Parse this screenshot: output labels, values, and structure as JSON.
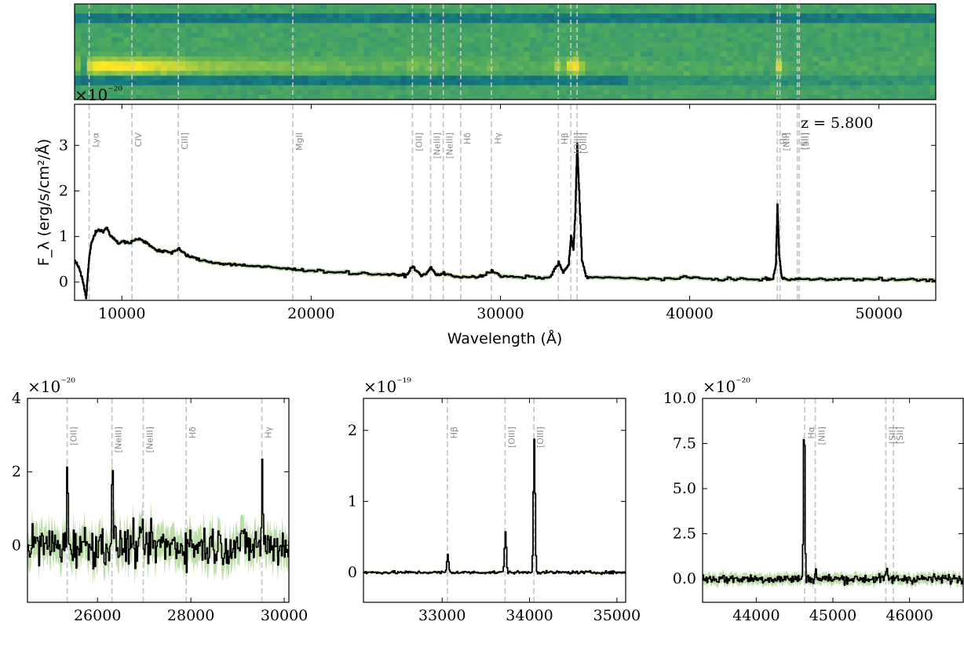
{
  "chart_data": [
    {
      "panel": "2d-spectrum",
      "type": "heatmap",
      "colormap": "viridis-like (green/yellow)",
      "xlim": [
        7500,
        53000
      ],
      "trace_features": [
        {
          "wavelength": 9000,
          "relative_brightness": 1.0
        },
        {
          "wavelength": 33700,
          "relative_brightness": 0.8
        },
        {
          "wavelength": 34070,
          "relative_brightness": 1.0
        },
        {
          "wavelength": 44620,
          "relative_brightness": 1.0
        }
      ]
    },
    {
      "panel": "main-1d",
      "type": "line",
      "title": "",
      "xlabel": "Wavelength (Å)",
      "ylabel": "F_λ (erg/s/cm²/Å)",
      "y_offset_text": "×10⁻²⁰",
      "annotation": "z = 5.800",
      "xlim": [
        7500,
        53000
      ],
      "ylim": [
        -0.4,
        3.9
      ],
      "xticks": [
        10000,
        20000,
        30000,
        40000,
        50000
      ],
      "yticks": [
        0,
        1,
        2,
        3
      ],
      "lines": [
        {
          "label": "Lyα",
          "wavelength": 8270
        },
        {
          "label": "CIV",
          "wavelength": 10530
        },
        {
          "label": "CIII]",
          "wavelength": 12980
        },
        {
          "label": "MgII",
          "wavelength": 19030
        },
        {
          "label": "[OII]",
          "wavelength": 25350
        },
        {
          "label": "[NeIII]",
          "wavelength": 26310
        },
        {
          "label": "[NeIII]",
          "wavelength": 26980
        },
        {
          "label": "Hδ",
          "wavelength": 27900
        },
        {
          "label": "Hγ",
          "wavelength": 29520
        },
        {
          "label": "Hβ",
          "wavelength": 33060
        },
        {
          "label": "[OIII]",
          "wavelength": 33720
        },
        {
          "label": "[OIII]",
          "wavelength": 34050
        },
        {
          "label": "Hα",
          "wavelength": 44630
        },
        {
          "label": "[NII]",
          "wavelength": 44770
        },
        {
          "label": "[SII]",
          "wavelength": 45690
        },
        {
          "label": "[SII]",
          "wavelength": 45790
        }
      ],
      "series": [
        {
          "x": [
            7500,
            7700,
            7900,
            8100,
            8200,
            8280,
            8400,
            8600,
            8800,
            9000,
            9200,
            9400,
            9600,
            9800,
            10000,
            10300,
            10600,
            10900,
            11200,
            11500,
            11800,
            12200,
            12600,
            13000,
            13300,
            13600,
            14000,
            14500,
            15000,
            15500,
            16000,
            16500,
            17000,
            17500,
            18000,
            18500,
            19000,
            19500,
            20000,
            21000,
            22000,
            23000,
            24000,
            24500,
            25000,
            25350,
            25700,
            26000,
            26310,
            26600,
            26980,
            27400,
            27900,
            28500,
            29000,
            29520,
            30000,
            31000,
            32000,
            32600,
            33060,
            33300,
            33600,
            33720,
            33850,
            33950,
            34050,
            34150,
            34300,
            34500,
            35000,
            36000,
            37000,
            38000,
            39000,
            40000,
            41000,
            42000,
            43000,
            44000,
            44400,
            44550,
            44630,
            44720,
            44850,
            45000,
            45500,
            46000,
            47000,
            48000,
            49000,
            50000,
            51000,
            52000,
            53000
          ],
          "y": [
            0.45,
            0.35,
            0.05,
            -0.35,
            0.2,
            0.6,
            0.9,
            1.1,
            1.15,
            1.1,
            1.2,
            1.0,
            0.95,
            0.85,
            0.9,
            0.85,
            0.9,
            0.95,
            0.88,
            0.8,
            0.7,
            0.68,
            0.65,
            0.72,
            0.62,
            0.55,
            0.5,
            0.45,
            0.42,
            0.4,
            0.38,
            0.37,
            0.35,
            0.33,
            0.32,
            0.3,
            0.28,
            0.27,
            0.25,
            0.23,
            0.2,
            0.18,
            0.17,
            0.15,
            0.15,
            0.35,
            0.17,
            0.15,
            0.32,
            0.15,
            0.2,
            0.13,
            0.12,
            0.12,
            0.12,
            0.25,
            0.12,
            0.11,
            0.1,
            0.1,
            0.45,
            0.2,
            0.4,
            1.0,
            0.7,
            1.5,
            3.05,
            2.0,
            0.5,
            0.12,
            0.1,
            0.09,
            0.08,
            0.08,
            0.07,
            0.1,
            0.07,
            0.07,
            0.06,
            0.06,
            0.08,
            0.4,
            1.7,
            0.6,
            0.1,
            0.08,
            0.07,
            0.06,
            0.06,
            0.06,
            0.06,
            0.07,
            0.05,
            0.05,
            0.05
          ]
        }
      ]
    },
    {
      "panel": "zoom-oii",
      "type": "line",
      "y_offset_text": "×10⁻²⁰",
      "xlim": [
        24500,
        30100
      ],
      "ylim": [
        -1.55,
        4.0
      ],
      "xticks": [
        26000,
        28000,
        30000
      ],
      "yticks": [
        0,
        2,
        4
      ],
      "lines": [
        {
          "label": "[OII]",
          "wavelength": 25350
        },
        {
          "label": "[NeIII]",
          "wavelength": 26310
        },
        {
          "label": "[NeIII]",
          "wavelength": 26980
        },
        {
          "label": "Hδ",
          "wavelength": 27900
        },
        {
          "label": "Hγ",
          "wavelength": 29520
        }
      ],
      "peaks": [
        {
          "x": 25350,
          "y": 2.1
        },
        {
          "x": 26310,
          "y": 2.2
        },
        {
          "x": 29520,
          "y": 2.0
        }
      ],
      "noise_sigma": 0.55
    },
    {
      "panel": "zoom-oiii",
      "type": "line",
      "y_offset_text": "×10⁻¹⁹",
      "xlim": [
        32100,
        35100
      ],
      "ylim": [
        -0.42,
        2.45
      ],
      "xticks": [
        33000,
        34000,
        35000
      ],
      "yticks": [
        0,
        1,
        2
      ],
      "lines": [
        {
          "label": "Hβ",
          "wavelength": 33060
        },
        {
          "label": "[OIII]",
          "wavelength": 33720
        },
        {
          "label": "[OIII]",
          "wavelength": 34050
        }
      ],
      "peaks": [
        {
          "x": 33060,
          "y": 0.25
        },
        {
          "x": 33720,
          "y": 0.58
        },
        {
          "x": 34050,
          "y": 1.88
        }
      ],
      "noise_sigma": 0.02
    },
    {
      "panel": "zoom-ha",
      "type": "line",
      "y_offset_text": "×10⁻²⁰",
      "xlim": [
        43300,
        46700
      ],
      "ylim": [
        -1.3,
        10.0
      ],
      "xticks": [
        44000,
        45000,
        46000
      ],
      "yticks": [
        0.0,
        2.5,
        5.0,
        7.5,
        10.0
      ],
      "lines": [
        {
          "label": "Hα",
          "wavelength": 44630
        },
        {
          "label": "[NII]",
          "wavelength": 44770
        },
        {
          "label": "[SII]",
          "wavelength": 45690
        },
        {
          "label": "[SII]",
          "wavelength": 45790
        }
      ],
      "peaks": [
        {
          "x": 44620,
          "y": 9.1
        },
        {
          "x": 44770,
          "y": 0.4
        },
        {
          "x": 45700,
          "y": 0.5
        }
      ],
      "noise_sigma": 0.25
    }
  ],
  "colors": {
    "spectrum": "#000000",
    "error_band": "#a9d18e",
    "line_marker": "#c8c8c8",
    "line_label": "#888888"
  }
}
